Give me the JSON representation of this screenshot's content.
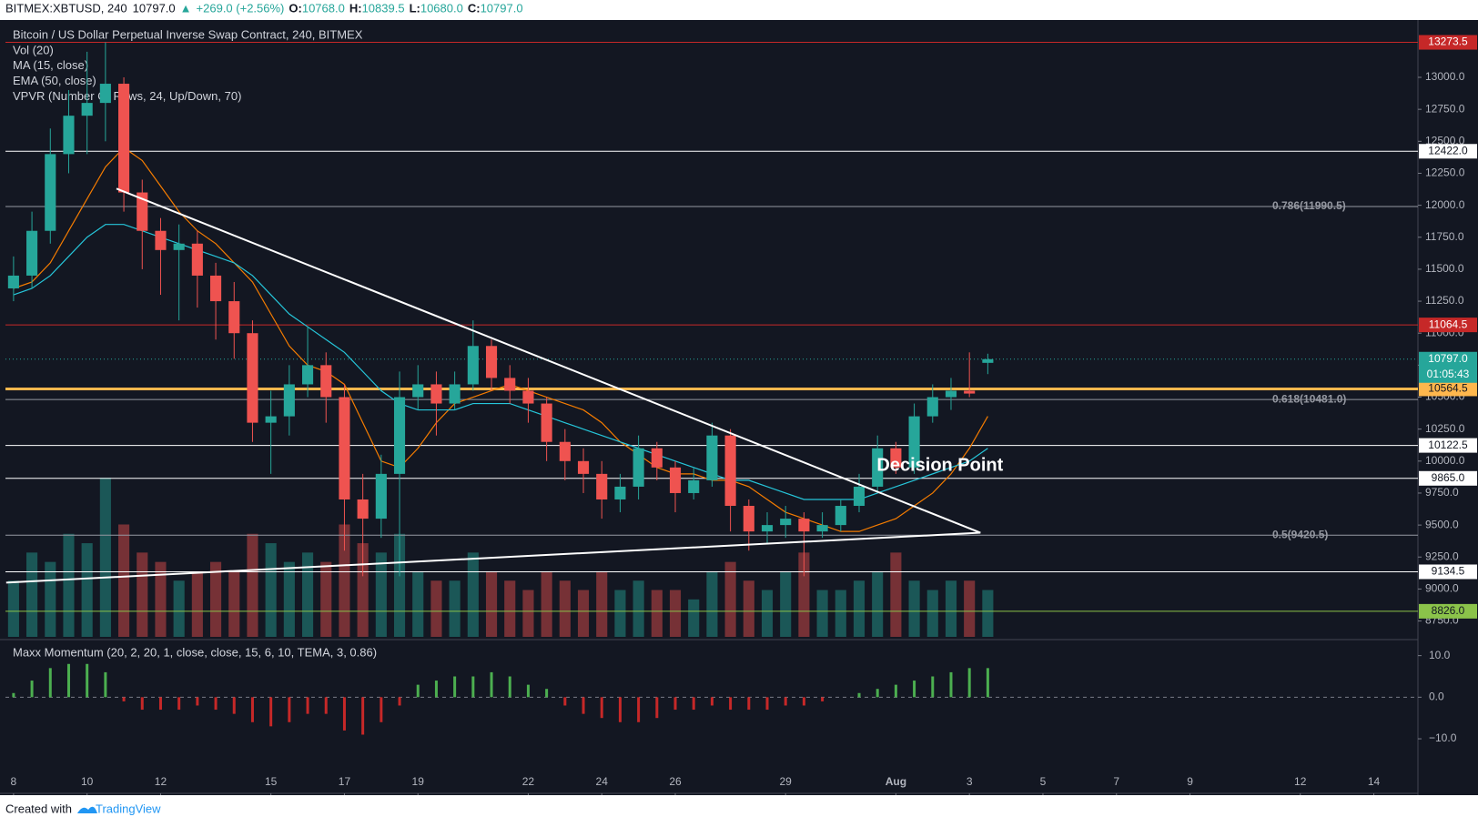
{
  "chart_data": {
    "type": "candlestick",
    "header": {
      "symbol": "BITMEX:XBTUSD, 240",
      "last": {
        "value": 10797,
        "label": "10797.0"
      },
      "arrow": "▲",
      "change": "+269.0 (+2.56%)",
      "o_label": "O:",
      "open": {
        "value": 10768,
        "label": "10768.0"
      },
      "h_label": "H:",
      "high": {
        "value": 10839.5,
        "label": "10839.5"
      },
      "l_label": "L:",
      "low": {
        "value": 10680,
        "label": "10680.0"
      },
      "c_label": "C:",
      "close": {
        "value": 10797,
        "label": "10797.0"
      }
    },
    "title": "Bitcoin / US Dollar Perpetual Inverse Swap Contract, 240, BITMEX",
    "indicators": [
      "Vol (20)",
      "MA (15, close)",
      "EMA (50, close)",
      "VPVR (Number Of Rows, 24, Up/Down, 70)"
    ],
    "up_color": "#26a69a",
    "down_color": "#ef5350",
    "x": [
      8,
      8.5,
      9,
      9.5,
      10,
      10.5,
      11,
      11.5,
      12,
      12.5,
      13,
      13.5,
      14,
      14.5,
      15,
      15.5,
      16,
      16.5,
      17,
      17.5,
      18,
      18.5,
      19,
      19.5,
      20,
      20.5,
      21,
      21.5,
      22,
      22.5,
      23,
      23.5,
      24,
      24.5,
      25,
      25.5,
      26,
      26.5,
      27,
      27.5,
      28,
      28.5,
      29,
      29.5,
      30,
      30.5,
      31,
      31.5,
      32,
      32.5,
      33,
      33.5,
      34,
      34.5
    ],
    "open": [
      11350,
      11450,
      11800,
      12400,
      12700,
      12800,
      12950,
      12100,
      11800,
      11650,
      11700,
      11450,
      11250,
      11000,
      10300,
      10350,
      10600,
      10750,
      10500,
      9700,
      9550,
      9900,
      10500,
      10600,
      10450,
      10600,
      10900,
      10650,
      10550,
      10450,
      10150,
      10000,
      9900,
      9700,
      9800,
      10100,
      9950,
      9750,
      9850,
      10200,
      9650,
      9450,
      9500,
      9550,
      9450,
      9500,
      9650,
      9800,
      10100,
      9950,
      10350,
      10500,
      10550,
      10768
    ],
    "high": [
      11600,
      11950,
      12600,
      12900,
      13200,
      13273.5,
      13000,
      12200,
      11900,
      11850,
      11800,
      11550,
      11400,
      11100,
      10550,
      10750,
      11050,
      10850,
      10600,
      9900,
      10050,
      10700,
      10750,
      10700,
      10700,
      11100,
      10950,
      10750,
      10650,
      10500,
      10250,
      10100,
      10000,
      9900,
      10200,
      10150,
      10000,
      9950,
      10300,
      10250,
      9700,
      9600,
      9650,
      9600,
      9600,
      9700,
      9900,
      10200,
      10150,
      10450,
      10600,
      10650,
      10850,
      10839.5
    ],
    "low": [
      11250,
      11350,
      11700,
      12250,
      12400,
      12500,
      11950,
      11500,
      11300,
      11100,
      11200,
      10950,
      10800,
      10150,
      9900,
      10200,
      10500,
      10300,
      9300,
      9100,
      9400,
      9100,
      10400,
      10200,
      10400,
      10550,
      10550,
      10450,
      10300,
      10000,
      9850,
      9750,
      9550,
      9600,
      9700,
      9850,
      9600,
      9700,
      9800,
      9450,
      9300,
      9350,
      9400,
      9100,
      9400,
      9450,
      9600,
      9750,
      9900,
      9900,
      10300,
      10400,
      10500,
      10680
    ],
    "close": [
      11450,
      11800,
      12400,
      12700,
      12800,
      12950,
      12100,
      11800,
      11650,
      11700,
      11450,
      11250,
      11000,
      10300,
      10350,
      10600,
      10750,
      10500,
      9700,
      9550,
      9900,
      10500,
      10600,
      10450,
      10600,
      10900,
      10650,
      10550,
      10450,
      10150,
      10000,
      9900,
      9700,
      9800,
      10100,
      9950,
      9750,
      9850,
      10200,
      9650,
      9450,
      9500,
      9550,
      9450,
      9500,
      9650,
      9800,
      10100,
      9950,
      10350,
      10500,
      10550,
      10528,
      10797
    ],
    "volume": {
      "name": "Vol (20)",
      "values": [
        30,
        45,
        40,
        55,
        50,
        85,
        60,
        45,
        40,
        30,
        35,
        40,
        35,
        55,
        50,
        40,
        45,
        40,
        60,
        50,
        45,
        55,
        35,
        30,
        30,
        45,
        35,
        30,
        25,
        35,
        30,
        25,
        35,
        25,
        30,
        25,
        25,
        20,
        35,
        40,
        30,
        25,
        35,
        45,
        25,
        25,
        30,
        35,
        45,
        30,
        25,
        30,
        30,
        25
      ]
    },
    "ma": {
      "name": "MA (15, close)",
      "color": "#f57c00",
      "values": [
        11350,
        11400,
        11550,
        11800,
        12050,
        12300,
        12450,
        12350,
        12150,
        11950,
        11800,
        11700,
        11550,
        11400,
        11150,
        10900,
        10750,
        10700,
        10600,
        10300,
        10000,
        9950,
        10100,
        10300,
        10450,
        10500,
        10550,
        10600,
        10550,
        10500,
        10450,
        10400,
        10300,
        10150,
        10050,
        9950,
        9900,
        9900,
        9850,
        9850,
        9800,
        9700,
        9600,
        9550,
        9500,
        9450,
        9450,
        9500,
        9550,
        9650,
        9750,
        9900,
        10100,
        10350
      ]
    },
    "ema": {
      "name": "EMA (50, close)",
      "color": "#26c6da",
      "values": [
        11300,
        11350,
        11450,
        11600,
        11750,
        11850,
        11850,
        11800,
        11750,
        11700,
        11650,
        11600,
        11550,
        11450,
        11300,
        11150,
        11050,
        10950,
        10850,
        10700,
        10550,
        10450,
        10400,
        10400,
        10400,
        10450,
        10450,
        10450,
        10400,
        10350,
        10300,
        10250,
        10200,
        10150,
        10100,
        10050,
        10000,
        9950,
        9900,
        9850,
        9850,
        9800,
        9750,
        9700,
        9700,
        9700,
        9700,
        9750,
        9800,
        9850,
        9900,
        9950,
        10000,
        10100
      ]
    },
    "xlim": [
      7.78,
      46.2
    ],
    "xticks": [
      8,
      10,
      12,
      15,
      17,
      19,
      22,
      24,
      26,
      29,
      {
        "value": 32,
        "label": "Aug"
      },
      {
        "value": 34,
        "label": "3"
      },
      {
        "value": 36,
        "label": "5"
      },
      {
        "value": 38,
        "label": "7"
      },
      {
        "value": 40,
        "label": "9"
      },
      {
        "value": 43,
        "label": "12"
      },
      {
        "value": 45,
        "label": "14"
      }
    ],
    "ylim": [
      8626,
      13441
    ],
    "yticks": [
      {
        "value": 8750,
        "label": "8750.0"
      },
      {
        "value": 9000,
        "label": "9000.0"
      },
      {
        "value": 9250,
        "label": "9250.0"
      },
      {
        "value": 9500,
        "label": "9500.0"
      },
      {
        "value": 9750,
        "label": "9750.0"
      },
      {
        "value": 10000,
        "label": "10000.0"
      },
      {
        "value": 10250,
        "label": "10250.0"
      },
      {
        "value": 10500,
        "label": "10500.0"
      },
      {
        "value": 10750,
        "label": "10750.0"
      },
      {
        "value": 11000,
        "label": "11000.0"
      },
      {
        "value": 11250,
        "label": "11250.0"
      },
      {
        "value": 11500,
        "label": "11500.0"
      },
      {
        "value": 11750,
        "label": "11750.0"
      },
      {
        "value": 12000,
        "label": "12000.0"
      },
      {
        "value": 12250,
        "label": "12250.0"
      },
      {
        "value": 12500,
        "label": "12500.0"
      },
      {
        "value": 12750,
        "label": "12750.0"
      },
      {
        "value": 13000,
        "label": "13000.0"
      }
    ],
    "levels": [
      {
        "value": 13273.5,
        "label": "13273.5",
        "color": "#c62828",
        "tag": true,
        "text_color": "#ffffff"
      },
      {
        "value": 12422,
        "label": "12422.0",
        "color": "#ffffff",
        "tag": true,
        "text_color": "#131722"
      },
      {
        "value": 11990.5,
        "label": "0.786(11990.5)",
        "color": "#9598a1",
        "tag": false,
        "text_color": "#9598a1"
      },
      {
        "value": 11064.5,
        "label": "11064.5",
        "color": "#c62828",
        "tag": true,
        "text_color": "#ffffff"
      },
      {
        "value": 10564.5,
        "label": "10564.5",
        "color": "#ffb74d",
        "tag": true,
        "text_color": "#131722"
      },
      {
        "value": 10481,
        "label": "0.618(10481.0)",
        "color": "#9598a1",
        "tag": false,
        "text_color": "#9598a1"
      },
      {
        "value": 10122.5,
        "label": "10122.5",
        "color": "#ffffff",
        "tag": true,
        "text_color": "#131722"
      },
      {
        "value": 9865,
        "label": "9865.0",
        "color": "#ffffff",
        "tag": true,
        "text_color": "#131722"
      },
      {
        "value": 9420.5,
        "label": "0.5(9420.5)",
        "color": "#9598a1",
        "tag": false,
        "text_color": "#9598a1"
      },
      {
        "value": 9134.5,
        "label": "9134.5",
        "color": "#ffffff",
        "tag": true,
        "text_color": "#131722"
      },
      {
        "value": 8826,
        "label": "8826.0",
        "color": "#8bc34a",
        "tag": true,
        "text_color": "#131722"
      }
    ],
    "current": {
      "value": 10797,
      "label": "10797.0",
      "timer": "01:05:43",
      "color": "#26a69a"
    },
    "trendlines": [
      {
        "points": [
          [
            10.8,
            12130
          ],
          [
            34.3,
            9440
          ]
        ]
      },
      {
        "points": [
          [
            7.8,
            9050
          ],
          [
            34.3,
            9440
          ]
        ]
      }
    ],
    "annotation": {
      "text": "Decision Point",
      "x": 33.2,
      "y": 9960
    },
    "momentum": {
      "name": "Maxx Momentum (20, 2, 20, 1, close, close, 15, 6, 10, TEMA, 3, 0.86)",
      "pos_color": "#4caf50",
      "neg_color": "#c62828",
      "ylim": [
        -21.8,
        13.2
      ],
      "yticks": [
        {
          "value": 10,
          "label": "10.0"
        },
        {
          "value": 0,
          "label": "0.0"
        },
        {
          "value": -10,
          "label": "−10.0"
        }
      ],
      "values": [
        1,
        4,
        7,
        8,
        8,
        6,
        -1,
        -3,
        -3,
        -3,
        -2,
        -3,
        -4,
        -6,
        -7,
        -6,
        -4,
        -4,
        -8,
        -9,
        -6,
        -2,
        3,
        4,
        5,
        5,
        6,
        5,
        3,
        2,
        -2,
        -4,
        -5,
        -6,
        -6,
        -5,
        -3,
        -3,
        -2,
        -3,
        -3,
        -3,
        -2,
        -2,
        -1,
        0,
        1,
        2,
        3,
        4,
        5,
        6,
        7,
        7
      ]
    },
    "footer": {
      "created": "Created with",
      "brand": "TradingView"
    }
  }
}
